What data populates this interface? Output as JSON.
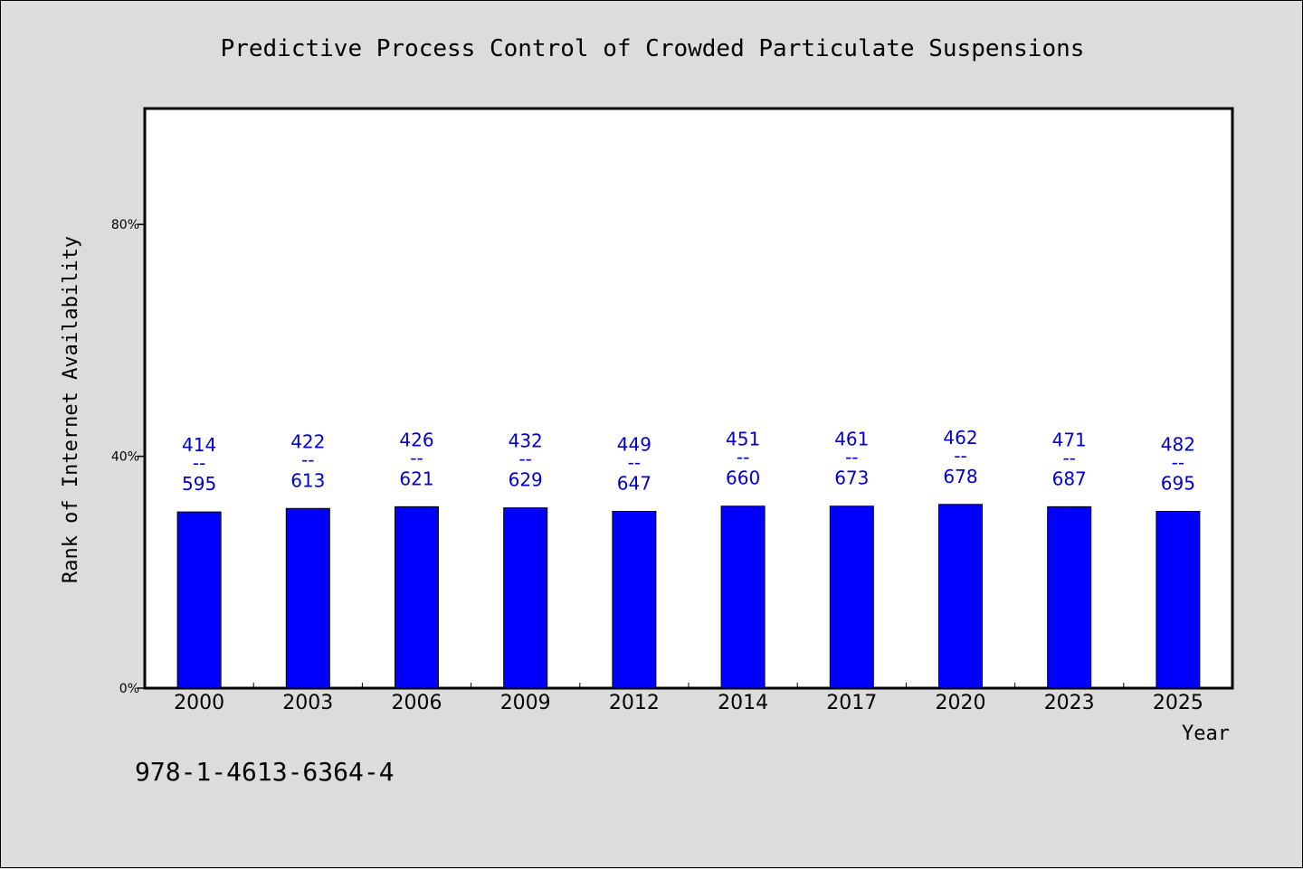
{
  "chart_data": {
    "type": "bar",
    "title": "Predictive Process Control of Crowded Particulate Suspensions",
    "xlabel": "Year",
    "ylabel": "Rank of Internet Availability",
    "categories": [
      "2000",
      "2003",
      "2006",
      "2009",
      "2012",
      "2014",
      "2017",
      "2020",
      "2023",
      "2025"
    ],
    "values": [
      30.4,
      31.0,
      31.3,
      31.1,
      30.5,
      31.4,
      31.4,
      31.7,
      31.3,
      30.5
    ],
    "labels_top": [
      "414",
      "422",
      "426",
      "432",
      "449",
      "451",
      "461",
      "462",
      "471",
      "482"
    ],
    "labels_separator": "--",
    "labels_bottom": [
      "595",
      "613",
      "621",
      "629",
      "647",
      "660",
      "673",
      "678",
      "687",
      "695"
    ],
    "ylim": [
      0,
      100
    ],
    "yticks": [
      0,
      40,
      80
    ],
    "ytick_labels": [
      "0%",
      "40%",
      "80%"
    ],
    "bar_color": "#0000ff",
    "label_color": "#0000cc",
    "grid": false,
    "legend": "none"
  },
  "footer": {
    "isbn": "978-1-4613-6364-4"
  }
}
